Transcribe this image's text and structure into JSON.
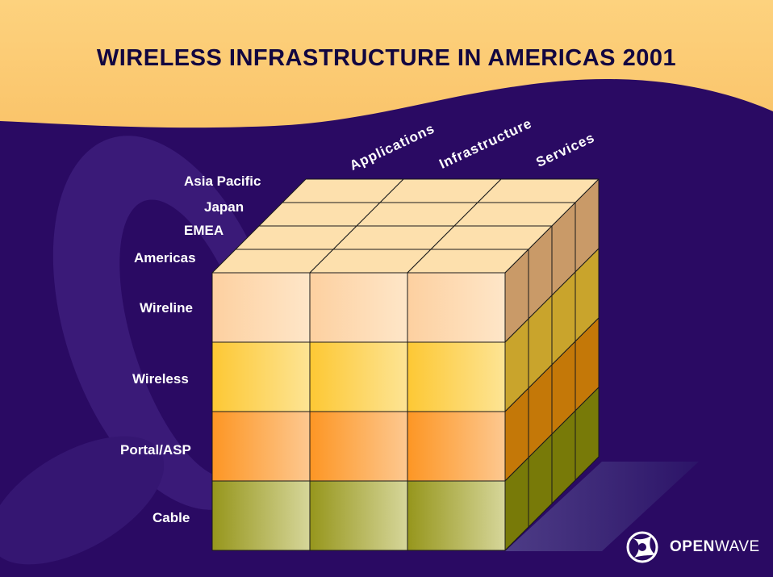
{
  "title": "WIRELESS INFRASTRUCTURE IN AMERICAS 2001",
  "column_labels": [
    "Applications",
    "Infrastructure",
    "Services"
  ],
  "depth_labels": [
    "Asia Pacific",
    "Japan",
    "EMEA",
    "Americas"
  ],
  "row_labels": [
    "Wireline",
    "Wireless",
    "Portal/ASP",
    "Cable"
  ],
  "logo": {
    "name": "openwave-logo-icon",
    "text_bold": "OPEN",
    "text_regular": "WAVE"
  },
  "colors": {
    "background": "#2a0a63",
    "banner": "#fcd077",
    "title": "#120640",
    "top_face": "#fde0ad",
    "row_front": [
      "#fdd9a8",
      "#fdd250",
      "#fd9f38",
      "#aaa838"
    ],
    "row_side": [
      "#c99a68",
      "#c9a42c",
      "#c47808",
      "#787a08"
    ],
    "edge": "#1a1a1a"
  }
}
